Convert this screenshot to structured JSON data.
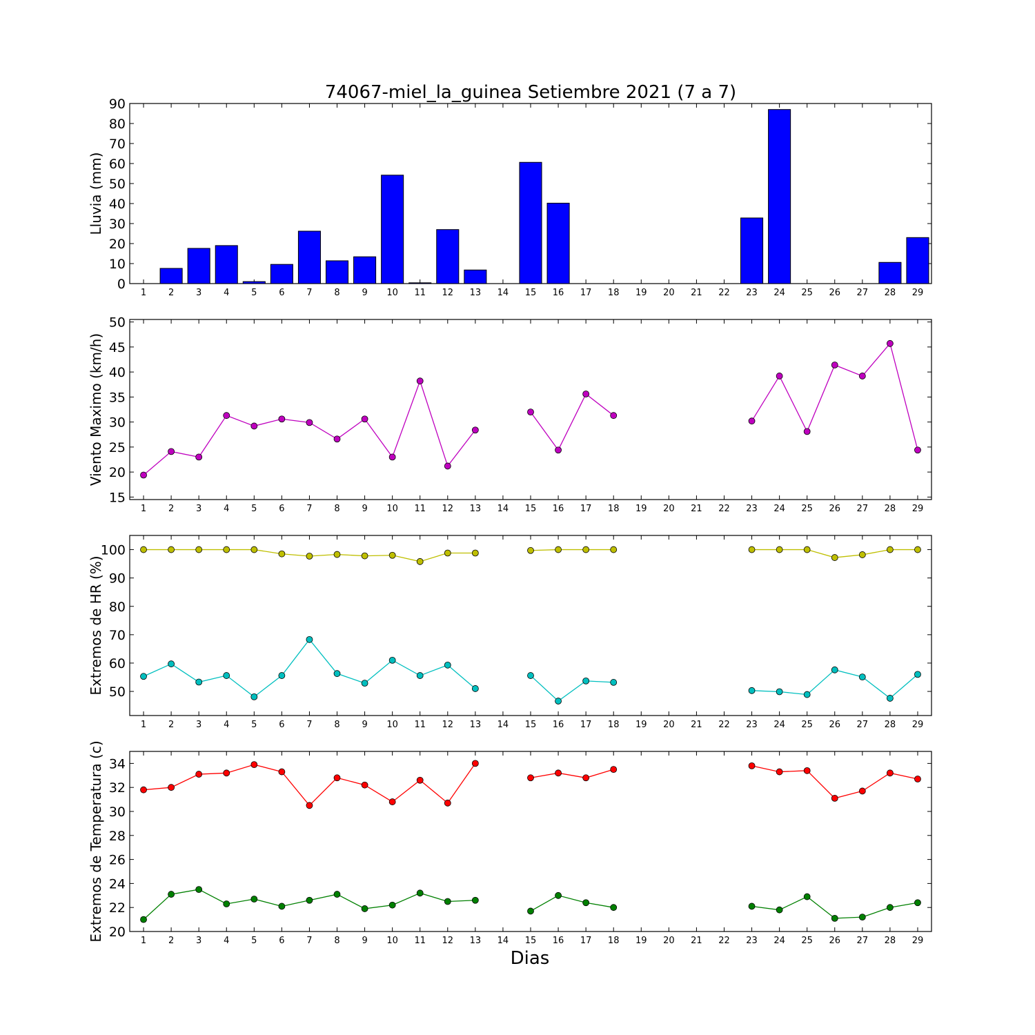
{
  "figure": {
    "title": "74067-miel_la_guinea Setiembre 2021  (7 a 7)",
    "xlabel": "Dias"
  },
  "chart_data": [
    {
      "type": "bar",
      "ylabel": "Lluvia (mm)",
      "ylim": [
        0,
        90
      ],
      "yticks": [
        0,
        10,
        20,
        30,
        40,
        50,
        60,
        70,
        80,
        90
      ],
      "x": [
        1,
        2,
        3,
        4,
        5,
        6,
        7,
        8,
        9,
        10,
        11,
        12,
        13,
        14,
        15,
        16,
        17,
        18,
        19,
        20,
        21,
        22,
        23,
        24,
        25,
        26,
        27,
        28,
        29
      ],
      "series": [
        {
          "color": "#0000ff",
          "values": [
            0,
            7.6,
            17.6,
            19,
            1,
            9.6,
            26.2,
            11.4,
            13.4,
            54.2,
            0.4,
            27,
            6.8,
            0,
            60.6,
            40.2,
            0,
            0,
            0,
            0,
            0,
            0,
            32.8,
            87,
            0,
            0,
            0,
            10.6,
            23
          ]
        }
      ]
    },
    {
      "type": "line",
      "ylabel": "Viento Maximo (km/h)",
      "ylim": [
        14.5,
        50.5
      ],
      "yticks": [
        15,
        20,
        25,
        30,
        35,
        40,
        45,
        50
      ],
      "x": [
        1,
        2,
        3,
        4,
        5,
        6,
        7,
        8,
        9,
        10,
        11,
        12,
        13,
        14,
        15,
        16,
        17,
        18,
        19,
        20,
        21,
        22,
        23,
        24,
        25,
        26,
        27,
        28,
        29
      ],
      "series": [
        {
          "color": "#bf00bf",
          "values": [
            19.4,
            24.1,
            23.0,
            31.3,
            29.2,
            30.6,
            29.9,
            26.6,
            30.6,
            23.0,
            38.2,
            21.2,
            28.4,
            null,
            32.0,
            24.4,
            35.6,
            31.3,
            null,
            null,
            null,
            null,
            30.2,
            39.2,
            28.1,
            41.4,
            39.2,
            45.7,
            24.4
          ]
        }
      ]
    },
    {
      "type": "line",
      "ylabel": "Extremos de HR (%)",
      "ylim": [
        41.5,
        105
      ],
      "yticks": [
        50,
        60,
        70,
        80,
        90,
        100
      ],
      "x": [
        1,
        2,
        3,
        4,
        5,
        6,
        7,
        8,
        9,
        10,
        11,
        12,
        13,
        14,
        15,
        16,
        17,
        18,
        19,
        20,
        21,
        22,
        23,
        24,
        25,
        26,
        27,
        28,
        29
      ],
      "series": [
        {
          "color": "#bfbf00",
          "values": [
            100,
            100,
            100,
            100,
            100,
            98.5,
            97.7,
            98.3,
            97.8,
            98.0,
            95.8,
            98.8,
            98.8,
            null,
            99.7,
            100,
            100,
            100,
            null,
            null,
            null,
            null,
            100,
            100,
            100,
            97.2,
            98.2,
            100,
            100
          ]
        },
        {
          "color": "#00bfbf",
          "values": [
            55.3,
            59.7,
            53.3,
            55.6,
            48.1,
            55.6,
            68.3,
            56.3,
            52.9,
            61.0,
            55.6,
            59.3,
            51.0,
            null,
            55.6,
            46.6,
            53.7,
            53.2,
            null,
            null,
            null,
            null,
            50.3,
            49.9,
            48.9,
            57.6,
            55.1,
            47.6,
            56.0
          ]
        }
      ]
    },
    {
      "type": "line",
      "ylabel": "Extremos de Temperatura (c)",
      "xlabel": "Dias",
      "ylim": [
        20,
        35
      ],
      "yticks": [
        20,
        22,
        24,
        26,
        28,
        30,
        32,
        34
      ],
      "x": [
        1,
        2,
        3,
        4,
        5,
        6,
        7,
        8,
        9,
        10,
        11,
        12,
        13,
        14,
        15,
        16,
        17,
        18,
        19,
        20,
        21,
        22,
        23,
        24,
        25,
        26,
        27,
        28,
        29
      ],
      "series": [
        {
          "color": "#ff0000",
          "values": [
            31.8,
            32.0,
            33.1,
            33.2,
            33.9,
            33.3,
            30.5,
            32.8,
            32.2,
            30.8,
            32.6,
            30.7,
            34.0,
            null,
            32.8,
            33.2,
            32.8,
            33.5,
            null,
            null,
            null,
            null,
            33.8,
            33.3,
            33.4,
            31.1,
            31.7,
            33.2,
            32.7
          ]
        },
        {
          "color": "#008000",
          "values": [
            21.0,
            23.1,
            23.5,
            22.3,
            22.7,
            22.1,
            22.6,
            23.1,
            21.9,
            22.2,
            23.2,
            22.5,
            22.6,
            null,
            21.7,
            23.0,
            22.4,
            22.0,
            null,
            null,
            null,
            null,
            22.1,
            21.8,
            22.9,
            21.1,
            21.2,
            22.0,
            22.4
          ]
        }
      ]
    }
  ]
}
